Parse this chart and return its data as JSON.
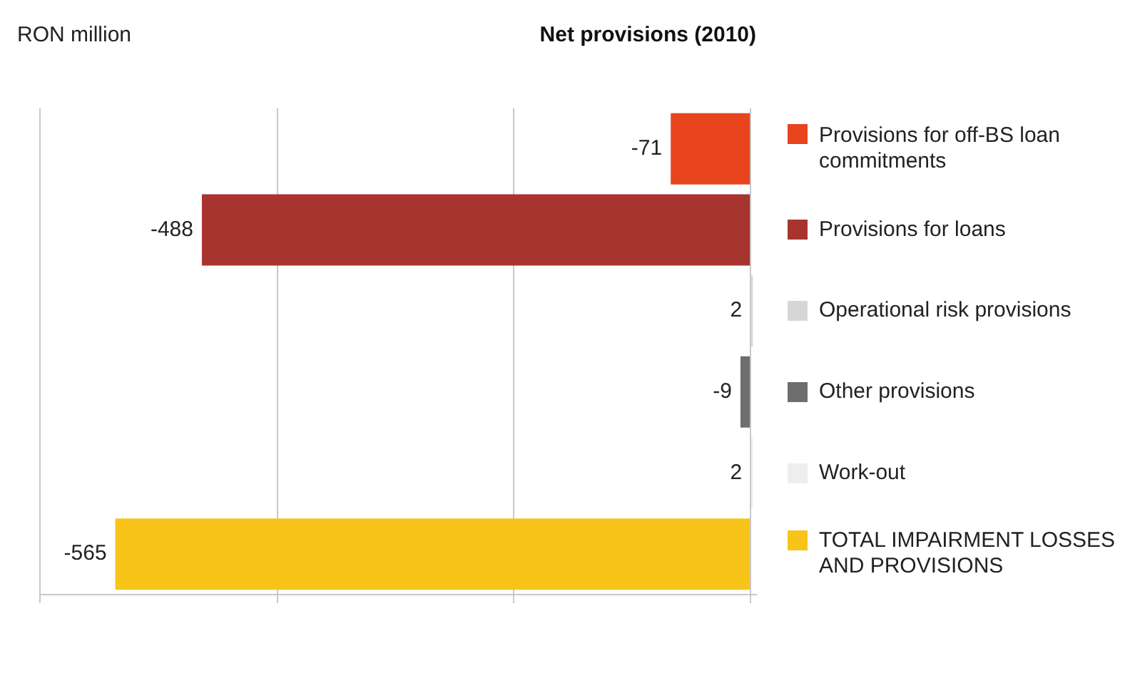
{
  "chart_data": {
    "type": "bar",
    "orientation": "horizontal",
    "title": "Net provisions (2010)",
    "annotations": [
      "RON million"
    ],
    "categories": [
      "Provisions for off-BS loan commitments",
      "Provisions for loans",
      "Operational risk provisions",
      "Other provisions",
      "Work-out",
      "TOTAL IMPAIRMENT LOSSES AND PROVISIONS"
    ],
    "values": [
      -71,
      -488,
      2,
      -9,
      2,
      -565
    ],
    "colors": [
      "#e8441e",
      "#a83430",
      "#d6d6d6",
      "#6e6e6e",
      "#eeeeee",
      "#f8c41a"
    ],
    "xlim": [
      -632,
      5
    ],
    "xticks": [
      {
        "value": -632,
        "label": null
      },
      {
        "value": -421,
        "label": null
      },
      {
        "value": -211,
        "label": null
      },
      {
        "value": 0,
        "label": null
      }
    ],
    "grid": "x",
    "tick_labels": "y",
    "data_labels": true
  }
}
